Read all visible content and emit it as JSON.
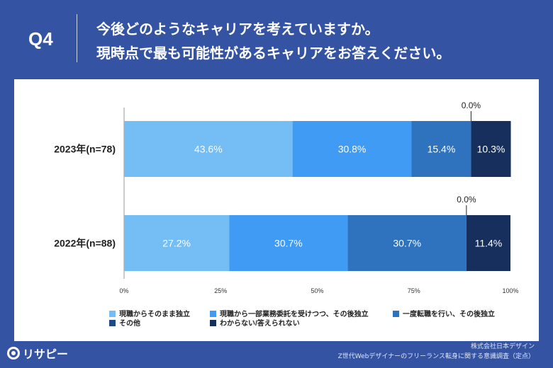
{
  "header": {
    "qnum": "Q4",
    "question_line1": "今後どのようなキャリアを考えていますか。",
    "question_line2": "現時点で最も可能性があるキャリアをお答えください。"
  },
  "footer": {
    "source_line1": "株式会社日本デザイン",
    "source_line2": "Z世代Webデザイナーのフリーランス転身に関する意識調査（定点）",
    "logo_text": "リサピー"
  },
  "colors": {
    "background": "#3553a3",
    "card": "#ffffff"
  },
  "chart_data": {
    "type": "bar",
    "orientation": "horizontal",
    "stacked": true,
    "percent_stacked": true,
    "categories": [
      "2023年(n=78)",
      "2022年(n=88)"
    ],
    "series": [
      {
        "name": "現職からそのまま独立",
        "values": [
          43.6,
          27.2
        ],
        "color": "#74bdf5"
      },
      {
        "name": "現職から一部業務委託を受けつつ、その後独立",
        "values": [
          30.8,
          30.7
        ],
        "color": "#3f9bf3"
      },
      {
        "name": "一度転職を行い、その後独立",
        "values": [
          15.4,
          30.7
        ],
        "color": "#2f72bd"
      },
      {
        "name": "その他",
        "values": [
          0.0,
          0.0
        ],
        "color": "#1d4a86"
      },
      {
        "name": "わからない/答えられない",
        "values": [
          10.3,
          11.4
        ],
        "color": "#162f5c"
      }
    ],
    "data_labels": [
      [
        "43.6%",
        "30.8%",
        "15.4%",
        "0.0%",
        "10.3%"
      ],
      [
        "27.2%",
        "30.7%",
        "30.7%",
        "0.0%",
        "11.4%"
      ]
    ],
    "xlim": [
      0,
      100
    ],
    "xticks": [
      "0%",
      "25%",
      "50%",
      "75%",
      "100%"
    ],
    "xtick_values": [
      0,
      25,
      50,
      75,
      100
    ],
    "grid": false,
    "legend_position": "bottom"
  }
}
